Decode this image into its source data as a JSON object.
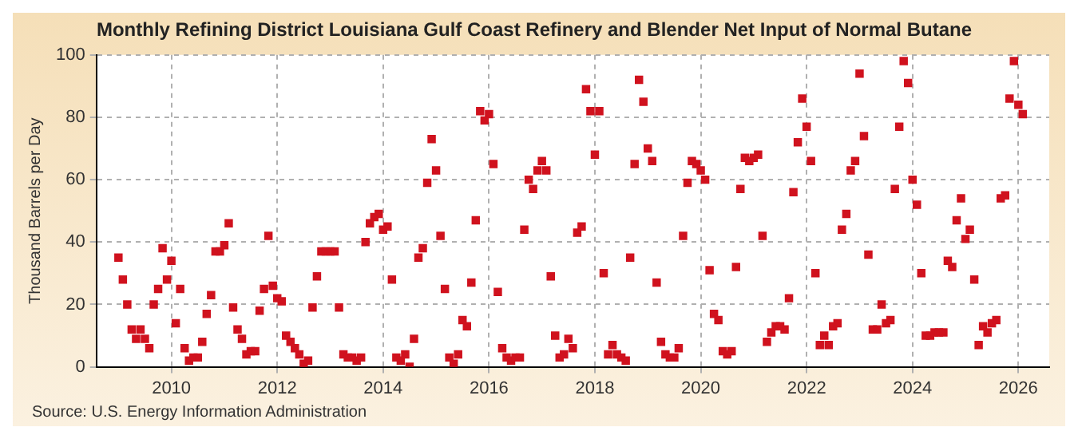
{
  "chart_data": {
    "type": "scatter",
    "title": "Monthly Refining District Louisiana Gulf Coast Refinery and Blender Net Input of Normal Butane",
    "ylabel": "Thousand Barrels per Day",
    "annotations": [
      "Source: U.S. Energy Information Administration"
    ],
    "xlim": [
      "2008-08",
      "2026-08"
    ],
    "xticks": [
      "2010",
      "2012",
      "2014",
      "2016",
      "2018",
      "2020",
      "2022",
      "2024",
      "2026"
    ],
    "ylim": [
      0,
      100
    ],
    "yticks": [
      0,
      20,
      40,
      60,
      80,
      100
    ],
    "grid": true,
    "marker": "square",
    "legend": false,
    "series": [
      {
        "color": "#d0121e",
        "x": [
          "2009-01",
          "2009-02",
          "2009-03",
          "2009-04",
          "2009-05",
          "2009-06",
          "2009-07",
          "2009-08",
          "2009-09",
          "2009-10",
          "2009-11",
          "2009-12",
          "2010-01",
          "2010-02",
          "2010-03",
          "2010-04",
          "2010-05",
          "2010-06",
          "2010-07",
          "2010-08",
          "2010-09",
          "2010-10",
          "2010-11",
          "2010-12",
          "2011-01",
          "2011-02",
          "2011-03",
          "2011-04",
          "2011-05",
          "2011-06",
          "2011-07",
          "2011-08",
          "2011-09",
          "2011-10",
          "2011-11",
          "2011-12",
          "2012-01",
          "2012-02",
          "2012-03",
          "2012-04",
          "2012-05",
          "2012-06",
          "2012-07",
          "2012-08",
          "2012-09",
          "2012-10",
          "2012-11",
          "2012-12",
          "2013-01",
          "2013-02",
          "2013-03",
          "2013-04",
          "2013-05",
          "2013-06",
          "2013-07",
          "2013-08",
          "2013-09",
          "2013-10",
          "2013-11",
          "2013-12",
          "2014-01",
          "2014-02",
          "2014-03",
          "2014-04",
          "2014-05",
          "2014-06",
          "2014-07",
          "2014-08",
          "2014-09",
          "2014-10",
          "2014-11",
          "2014-12",
          "2015-01",
          "2015-02",
          "2015-03",
          "2015-04",
          "2015-05",
          "2015-06",
          "2015-07",
          "2015-08",
          "2015-09",
          "2015-10",
          "2015-11",
          "2015-12",
          "2016-01",
          "2016-02",
          "2016-03",
          "2016-04",
          "2016-05",
          "2016-06",
          "2016-07",
          "2016-08",
          "2016-09",
          "2016-10",
          "2016-11",
          "2016-12",
          "2017-01",
          "2017-02",
          "2017-03",
          "2017-04",
          "2017-05",
          "2017-06",
          "2017-07",
          "2017-08",
          "2017-09",
          "2017-10",
          "2017-11",
          "2017-12",
          "2018-01",
          "2018-02",
          "2018-03",
          "2018-04",
          "2018-05",
          "2018-06",
          "2018-07",
          "2018-08",
          "2018-09",
          "2018-10",
          "2018-11",
          "2018-12",
          "2019-01",
          "2019-02",
          "2019-03",
          "2019-04",
          "2019-05",
          "2019-06",
          "2019-07",
          "2019-08",
          "2019-09",
          "2019-10",
          "2019-11",
          "2019-12",
          "2020-01",
          "2020-02",
          "2020-03",
          "2020-04",
          "2020-05",
          "2020-06",
          "2020-07",
          "2020-08",
          "2020-09",
          "2020-10",
          "2020-11",
          "2020-12",
          "2021-01",
          "2021-02",
          "2021-03",
          "2021-04",
          "2021-05",
          "2021-06",
          "2021-07",
          "2021-08",
          "2021-09",
          "2021-10",
          "2021-11",
          "2021-12",
          "2022-01",
          "2022-02",
          "2022-03",
          "2022-04",
          "2022-05",
          "2022-06",
          "2022-07",
          "2022-08",
          "2022-09",
          "2022-10",
          "2022-11",
          "2022-12",
          "2023-01",
          "2023-02",
          "2023-03",
          "2023-04",
          "2023-05",
          "2023-06",
          "2023-07",
          "2023-08",
          "2023-09",
          "2023-10",
          "2023-11",
          "2023-12",
          "2024-01",
          "2024-02",
          "2024-03",
          "2024-04",
          "2024-05",
          "2024-06",
          "2024-07",
          "2024-08",
          "2024-09",
          "2024-10",
          "2024-11",
          "2024-12",
          "2025-01",
          "2025-02",
          "2025-03",
          "2025-04",
          "2025-05",
          "2025-06",
          "2025-07",
          "2025-08",
          "2025-09",
          "2025-10",
          "2025-11",
          "2025-12",
          "2026-01",
          "2026-02"
        ],
        "values": [
          35,
          28,
          20,
          12,
          9,
          12,
          9,
          6,
          20,
          25,
          38,
          28,
          34,
          14,
          25,
          6,
          2,
          3,
          3,
          8,
          17,
          23,
          37,
          37,
          39,
          46,
          19,
          12,
          9,
          4,
          5,
          5,
          18,
          25,
          42,
          26,
          22,
          21,
          10,
          8,
          6,
          4,
          1,
          2,
          19,
          29,
          37,
          37,
          37,
          37,
          19,
          4,
          3,
          3,
          2,
          3,
          40,
          46,
          48,
          49,
          44,
          45,
          28,
          3,
          2,
          4,
          0,
          9,
          35,
          38,
          59,
          73,
          63,
          42,
          25,
          3,
          1,
          4,
          15,
          13,
          27,
          47,
          82,
          79,
          81,
          65,
          24,
          6,
          3,
          2,
          3,
          3,
          44,
          60,
          57,
          63,
          66,
          63,
          29,
          10,
          3,
          4,
          9,
          6,
          43,
          45,
          89,
          82,
          68,
          82,
          30,
          4,
          7,
          4,
          3,
          2,
          35,
          65,
          92,
          85,
          70,
          66,
          27,
          8,
          4,
          3,
          3,
          6,
          42,
          59,
          66,
          65,
          63,
          60,
          31,
          17,
          15,
          5,
          4,
          5,
          32,
          57,
          67,
          66,
          67,
          68,
          42,
          8,
          11,
          13,
          13,
          12,
          22,
          56,
          72,
          86,
          77,
          66,
          30,
          7,
          10,
          7,
          13,
          14,
          44,
          49,
          63,
          66,
          94,
          74,
          36,
          12,
          12,
          20,
          14,
          15,
          57,
          77,
          98,
          91,
          60,
          52,
          30,
          10,
          10,
          11,
          11,
          11,
          34,
          32,
          47,
          54,
          41,
          44,
          28,
          7,
          13,
          11,
          14,
          15,
          54,
          55,
          86,
          98,
          84,
          81
        ]
      }
    ]
  }
}
